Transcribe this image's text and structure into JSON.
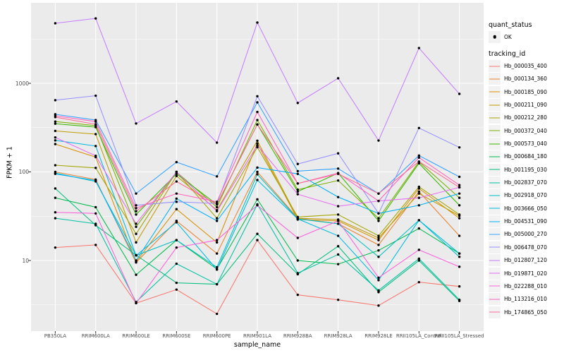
{
  "theme": {
    "background": "#FFFFFF",
    "panel_bg": "#EBEBEB",
    "grid_color": "#FFFFFF",
    "axis_text_color": "#4D4D4D",
    "tick_mark_color": "#333333",
    "text_color": "#000000",
    "legend_key_bg": "#F2F2F2",
    "marker_color": "#000000"
  },
  "legend": {
    "quant_status": {
      "title": "quant_status",
      "items": [
        {
          "label": "OK",
          "marker": "point",
          "color": "#000000"
        }
      ]
    },
    "tracking_id": {
      "title": "tracking_id"
    }
  },
  "chart_data": {
    "type": "line",
    "title": "",
    "xlabel": "sample_name",
    "ylabel": "FPKM + 1",
    "yscale": "log10",
    "ylim": [
      1.6,
      8100
    ],
    "grid": true,
    "legend_position": "right",
    "marker": {
      "shape": "filled-circle",
      "color": "#000000",
      "legend_label": "OK"
    },
    "yticks": [
      {
        "value": 1000,
        "label": "1000"
      },
      {
        "value": 100,
        "label": "100"
      },
      {
        "value": 10,
        "label": "10"
      }
    ],
    "minor_ticks": [
      3.162,
      31.62,
      316.2,
      3162
    ],
    "categories": [
      "PB350LA",
      "RRIM600LA",
      "RRIM600LE",
      "RRIM600SE",
      "RRIM600PE",
      "RRIM901LA",
      "RRIM928BA",
      "RRIM928LA",
      "RRIM928LE",
      "RRII105LA_Control",
      "RRII105LA_Stressed"
    ],
    "series": [
      {
        "name": "Hb_000035_400",
        "color": "#F8766D",
        "values": [
          14,
          15,
          3.3,
          4.7,
          2.5,
          17,
          4.1,
          3.6,
          3.1,
          5.7,
          5.1
        ]
      },
      {
        "name": "Hb_000134_360",
        "color": "#EA8331",
        "values": [
          100,
          82,
          9.5,
          28,
          12,
          100,
          30,
          26,
          15,
          60,
          19
        ]
      },
      {
        "name": "Hb_000185_090",
        "color": "#D89000",
        "values": [
          206,
          147,
          9.7,
          38,
          16,
          210,
          29,
          28,
          17,
          65,
          30
        ]
      },
      {
        "name": "Hb_000211_090",
        "color": "#C09B00",
        "values": [
          290,
          267,
          16,
          90,
          37,
          225,
          30,
          29,
          18,
          57,
          32
        ]
      },
      {
        "name": "Hb_000212_280",
        "color": "#A3A500",
        "values": [
          119,
          111,
          20,
          100,
          30,
          190,
          31,
          33,
          19,
          68,
          33
        ]
      },
      {
        "name": "Hb_000372_040",
        "color": "#7CAE00",
        "values": [
          370,
          333,
          24,
          100,
          40,
          385,
          63,
          80,
          30,
          130,
          51
        ]
      },
      {
        "name": "Hb_000573_040",
        "color": "#39B600",
        "values": [
          350,
          320,
          33,
          95,
          43,
          343,
          60,
          97,
          28,
          125,
          42
        ]
      },
      {
        "name": "Hb_000684_180",
        "color": "#00BB4E",
        "values": [
          51,
          40,
          6.9,
          17,
          8,
          49,
          10,
          9.1,
          13,
          23,
          12
        ]
      },
      {
        "name": "Hb_001195_030",
        "color": "#00BF7D",
        "values": [
          65,
          25,
          11.5,
          5.6,
          5.4,
          20,
          7,
          14.5,
          4.4,
          10,
          3.5
        ]
      },
      {
        "name": "Hb_002837_070",
        "color": "#00C1A3",
        "values": [
          30,
          26,
          3.4,
          9.2,
          5.4,
          43,
          7.2,
          11.7,
          4.6,
          10.5,
          3.6
        ]
      },
      {
        "name": "Hb_002918_070",
        "color": "#00BFC4",
        "values": [
          97,
          78,
          11.4,
          17,
          8.4,
          94,
          29.5,
          26,
          11,
          28.5,
          11
        ]
      },
      {
        "name": "Hb_003666_050",
        "color": "#00BAE0",
        "values": [
          227,
          196,
          11.4,
          27,
          7.9,
          81,
          29.5,
          19,
          6,
          28.5,
          12
        ]
      },
      {
        "name": "Hb_004531_090",
        "color": "#00B0F6",
        "values": [
          95,
          80,
          10,
          50,
          28,
          112,
          95,
          52,
          34,
          42,
          57
        ]
      },
      {
        "name": "Hb_005000_270",
        "color": "#35A2FF",
        "values": [
          447,
          385,
          57,
          129,
          89,
          610,
          102,
          109,
          57,
          153,
          88
        ]
      },
      {
        "name": "Hb_006478_070",
        "color": "#9590FF",
        "values": [
          645,
          725,
          42,
          46,
          44,
          715,
          123,
          162,
          34,
          313,
          189
        ]
      },
      {
        "name": "Hb_012807_120",
        "color": "#C77CFF",
        "values": [
          4760,
          5400,
          352,
          623,
          214,
          4850,
          600,
          1140,
          226,
          2500,
          760
        ]
      },
      {
        "name": "Hb_019871_020",
        "color": "#E76BF3",
        "values": [
          245,
          152,
          26,
          100,
          36,
          200,
          56,
          41,
          47,
          51,
          67
        ]
      },
      {
        "name": "Hb_022288_010",
        "color": "#FA62DB",
        "values": [
          35,
          34,
          3.3,
          14,
          17,
          42,
          18,
          28,
          6.4,
          13.2,
          8.5
        ]
      },
      {
        "name": "Hb_113216_010",
        "color": "#FF62BC",
        "values": [
          430,
          370,
          39,
          57,
          46,
          475,
          74,
          97,
          47,
          145,
          71
        ]
      },
      {
        "name": "Hb_174865_050",
        "color": "#FF6A98",
        "values": [
          415,
          345,
          36,
          78,
          43,
          343,
          74,
          95,
          57,
          131,
          67
        ]
      }
    ]
  }
}
